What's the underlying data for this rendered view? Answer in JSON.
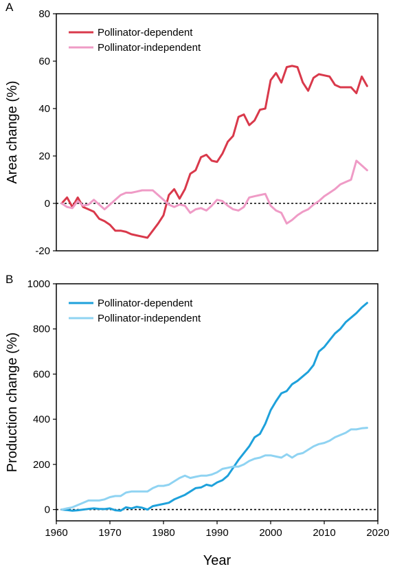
{
  "chart_data": [
    {
      "panel": "A",
      "type": "line",
      "xlabel": "",
      "ylabel": "Area change (%)",
      "xlim": [
        1960,
        2020
      ],
      "ylim": [
        -20,
        80
      ],
      "yticks": [
        -20,
        0,
        20,
        40,
        60,
        80
      ],
      "yticklabels": [
        "-20",
        "0",
        "20",
        "40",
        "60",
        "80"
      ],
      "reference_line": {
        "y": 0,
        "style": "dotted"
      },
      "legend": "top-left",
      "series": [
        {
          "name": "Pollinator-dependent",
          "color": "#d9394b",
          "x": [
            1961,
            1962,
            1963,
            1964,
            1965,
            1966,
            1967,
            1968,
            1969,
            1970,
            1971,
            1972,
            1973,
            1974,
            1975,
            1976,
            1977,
            1978,
            1979,
            1980,
            1981,
            1982,
            1983,
            1984,
            1985,
            1986,
            1987,
            1988,
            1989,
            1990,
            1991,
            1992,
            1993,
            1994,
            1995,
            1996,
            1997,
            1998,
            1999,
            2000,
            2001,
            2002,
            2003,
            2004,
            2005,
            2006,
            2007,
            2008,
            2009,
            2010,
            2011,
            2012,
            2013,
            2014,
            2015,
            2016,
            2017,
            2018
          ],
          "y": [
            0,
            2.5,
            -1.5,
            2.5,
            -1.5,
            -2.5,
            -3.5,
            -6.5,
            -7.5,
            -9,
            -11.5,
            -11.5,
            -12,
            -13,
            -13.5,
            -14,
            -14.5,
            -11.5,
            -8.5,
            -5,
            3.5,
            6,
            2,
            6,
            12.5,
            14,
            19.5,
            20.5,
            18,
            17.5,
            21,
            26,
            28.5,
            36.5,
            37.5,
            33,
            35,
            39.5,
            40,
            52,
            55,
            51,
            57.5,
            58,
            57.5,
            51,
            47.5,
            53,
            54.5,
            54,
            53.5,
            50,
            49,
            49,
            49,
            46.5,
            53.5,
            49.5
          ]
        },
        {
          "name": "Pollinator-independent",
          "color": "#ef9bc6",
          "x": [
            1961,
            1962,
            1963,
            1964,
            1965,
            1966,
            1967,
            1968,
            1969,
            1970,
            1971,
            1972,
            1973,
            1974,
            1975,
            1976,
            1977,
            1978,
            1979,
            1980,
            1981,
            1982,
            1983,
            1984,
            1985,
            1986,
            1987,
            1988,
            1989,
            1990,
            1991,
            1992,
            1993,
            1994,
            1995,
            1996,
            1997,
            1998,
            1999,
            2000,
            2001,
            2002,
            2003,
            2004,
            2005,
            2006,
            2007,
            2008,
            2009,
            2010,
            2011,
            2012,
            2013,
            2014,
            2015,
            2016,
            2017,
            2018
          ],
          "y": [
            0,
            -1.5,
            -2,
            1,
            -1,
            -0.5,
            1.5,
            -0.5,
            -2.5,
            -0.5,
            1.5,
            3.5,
            4.5,
            4.5,
            5,
            5.5,
            5.5,
            5.5,
            3.5,
            1.5,
            -0.5,
            -1.5,
            -0.5,
            -1,
            -4,
            -2.5,
            -2,
            -3,
            -1,
            1.5,
            1,
            -1,
            -2.5,
            -3,
            -1.5,
            2.5,
            3,
            3.5,
            4,
            -1,
            -3,
            -4,
            -8.5,
            -7,
            -5,
            -3.5,
            -2.5,
            -0.5,
            1,
            3,
            4.5,
            6,
            8,
            9,
            10,
            18,
            16,
            14
          ]
        }
      ]
    },
    {
      "panel": "B",
      "type": "line",
      "xlabel": "Year",
      "ylabel": "Production change (%)",
      "xlim": [
        1960,
        2020
      ],
      "ylim": [
        -50,
        1000
      ],
      "xticks": [
        1960,
        1970,
        1980,
        1990,
        2000,
        2010,
        2020
      ],
      "xticklabels": [
        "1960",
        "1970",
        "1980",
        "1990",
        "2000",
        "2010",
        "2020"
      ],
      "yticks": [
        0,
        200,
        400,
        600,
        800,
        1000
      ],
      "yticklabels": [
        "0",
        "200",
        "400",
        "600",
        "800",
        "1000"
      ],
      "reference_line": {
        "y": 0,
        "style": "dotted"
      },
      "legend": "top-left",
      "series": [
        {
          "name": "Pollinator-dependent",
          "color": "#1ea1db",
          "x": [
            1961,
            1962,
            1963,
            1964,
            1965,
            1966,
            1967,
            1968,
            1969,
            1970,
            1971,
            1972,
            1973,
            1974,
            1975,
            1976,
            1977,
            1978,
            1979,
            1980,
            1981,
            1982,
            1983,
            1984,
            1985,
            1986,
            1987,
            1988,
            1989,
            1990,
            1991,
            1992,
            1993,
            1994,
            1995,
            1996,
            1997,
            1998,
            1999,
            2000,
            2001,
            2002,
            2003,
            2004,
            2005,
            2006,
            2007,
            2008,
            2009,
            2010,
            2011,
            2012,
            2013,
            2014,
            2015,
            2016,
            2017,
            2018
          ],
          "y": [
            0,
            -2,
            -5,
            -3,
            0,
            3,
            5,
            3,
            2,
            5,
            -3,
            -5,
            10,
            5,
            12,
            8,
            0,
            15,
            20,
            25,
            30,
            45,
            55,
            65,
            80,
            95,
            98,
            110,
            105,
            120,
            130,
            150,
            185,
            220,
            250,
            280,
            320,
            335,
            380,
            440,
            480,
            515,
            525,
            555,
            570,
            590,
            610,
            640,
            700,
            720,
            750,
            780,
            800,
            830,
            850,
            870,
            895,
            915
          ]
        },
        {
          "name": "Pollinator-independent",
          "color": "#8fd3f2",
          "x": [
            1961,
            1962,
            1963,
            1964,
            1965,
            1966,
            1967,
            1968,
            1969,
            1970,
            1971,
            1972,
            1973,
            1974,
            1975,
            1976,
            1977,
            1978,
            1979,
            1980,
            1981,
            1982,
            1983,
            1984,
            1985,
            1986,
            1987,
            1988,
            1989,
            1990,
            1991,
            1992,
            1993,
            1994,
            1995,
            1996,
            1997,
            1998,
            1999,
            2000,
            2001,
            2002,
            2003,
            2004,
            2005,
            2006,
            2007,
            2008,
            2009,
            2010,
            2011,
            2012,
            2013,
            2014,
            2015,
            2016,
            2017,
            2018
          ],
          "y": [
            0,
            5,
            10,
            20,
            30,
            40,
            40,
            40,
            45,
            55,
            60,
            60,
            75,
            80,
            80,
            80,
            80,
            95,
            105,
            105,
            110,
            125,
            140,
            150,
            140,
            145,
            150,
            150,
            155,
            165,
            180,
            185,
            190,
            190,
            200,
            215,
            225,
            230,
            240,
            240,
            235,
            230,
            245,
            230,
            245,
            250,
            265,
            280,
            290,
            295,
            305,
            320,
            330,
            340,
            355,
            355,
            360,
            362
          ]
        }
      ]
    }
  ],
  "panels": [
    {
      "letter": "A"
    },
    {
      "letter": "B"
    }
  ]
}
